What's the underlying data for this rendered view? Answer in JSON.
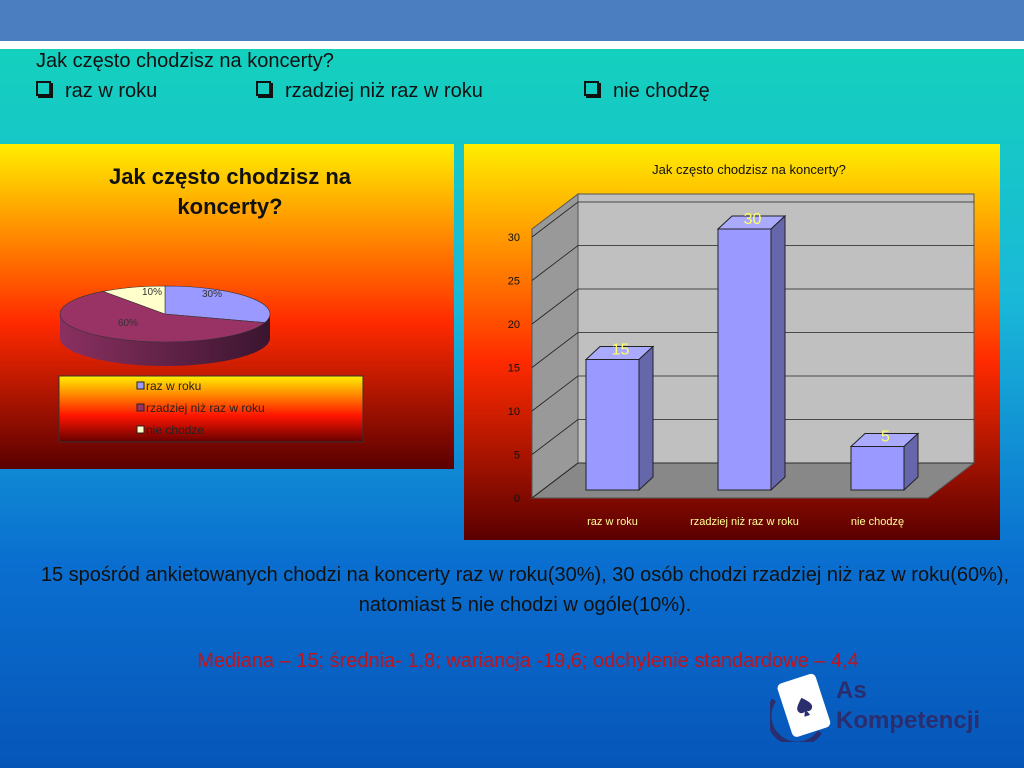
{
  "question": "Jak często chodzisz na koncerty?",
  "options": [
    "raz w roku",
    "rzadziej niż raz w roku",
    "nie chodzę"
  ],
  "chart_data": [
    {
      "type": "pie",
      "title": "Jak często chodzisz na koncerty?",
      "labels": [
        "raz w roku",
        "rzadziej niż raz w roku",
        "nie chodze"
      ],
      "values": [
        30,
        60,
        10
      ],
      "data_labels": [
        "30%",
        "60%",
        "10%"
      ],
      "colors": [
        "#9999ff",
        "#993366",
        "#ffffcc"
      ],
      "legend": "bottom"
    },
    {
      "type": "bar",
      "title": "Jak często chodzisz na koncerty?",
      "categories": [
        "raz w roku",
        "rzadziej niż raz w roku",
        "nie chodzę"
      ],
      "values": [
        15,
        30,
        5
      ],
      "data_labels": [
        "15",
        "30",
        "5"
      ],
      "yticks": [
        "0",
        "5",
        "10",
        "15",
        "20",
        "25",
        "30"
      ],
      "ylim": [
        0,
        30
      ],
      "grid": true,
      "bar_color": "#9999ff"
    }
  ],
  "summary": "15 spośród ankietowanych chodzi na koncerty raz w roku(30%), 30 osób chodzi  rzadziej niż raz w roku(60%), natomiast 5 nie chodzi w ogóle(10%).",
  "stats": "Mediana – 15; średnia- 1,8; wariancja -19,6; odchylenie standardowe – 4,4",
  "logo": {
    "line1": "As",
    "line2": "Kompetencji"
  }
}
